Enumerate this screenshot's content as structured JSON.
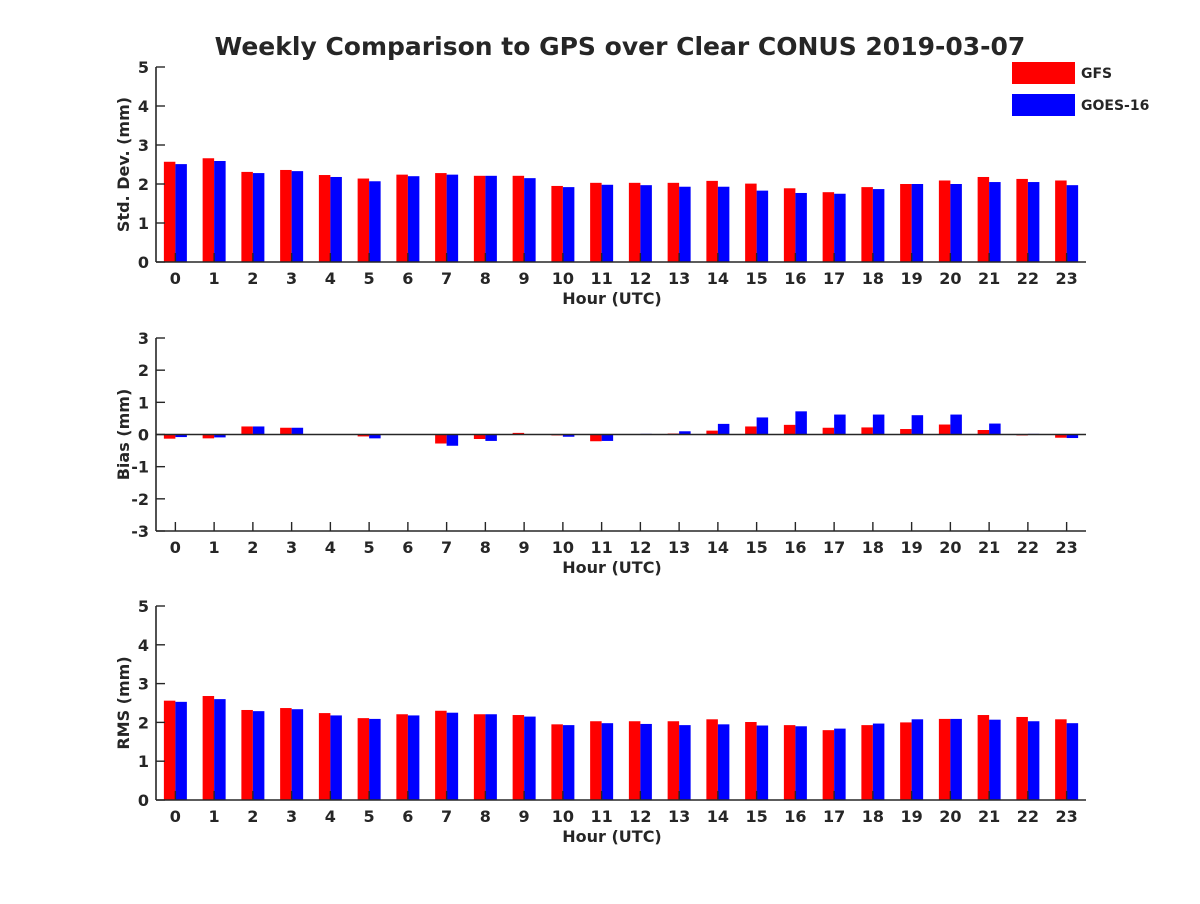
{
  "title": "Weekly Comparison to GPS over Clear CONUS 2019-03-07",
  "legend": [
    {
      "name": "GFS",
      "color": "#ff0000"
    },
    {
      "name": "GOES-16",
      "color": "#0000ff"
    }
  ],
  "chart_data": [
    {
      "type": "bar",
      "xlabel": "Hour (UTC)",
      "ylabel": "Std. Dev. (mm)",
      "ylim": [
        0,
        5
      ],
      "yticks": [
        0,
        1,
        2,
        3,
        4,
        5
      ],
      "categories": [
        "0",
        "1",
        "2",
        "3",
        "4",
        "5",
        "6",
        "7",
        "8",
        "9",
        "10",
        "11",
        "12",
        "13",
        "14",
        "15",
        "16",
        "17",
        "18",
        "19",
        "20",
        "21",
        "22",
        "23"
      ],
      "series": [
        {
          "name": "GFS",
          "color": "#ff0000",
          "values": [
            2.57,
            2.66,
            2.31,
            2.36,
            2.23,
            2.14,
            2.24,
            2.28,
            2.21,
            2.21,
            1.95,
            2.03,
            2.03,
            2.03,
            2.08,
            2.01,
            1.89,
            1.79,
            1.92,
            2.0,
            2.09,
            2.18,
            2.13,
            2.09
          ]
        },
        {
          "name": "GOES-16",
          "color": "#0000ff",
          "values": [
            2.51,
            2.59,
            2.28,
            2.33,
            2.18,
            2.07,
            2.2,
            2.24,
            2.21,
            2.15,
            1.92,
            1.98,
            1.97,
            1.93,
            1.93,
            1.83,
            1.77,
            1.75,
            1.87,
            2.0,
            2.0,
            2.05,
            2.05,
            1.97
          ]
        }
      ]
    },
    {
      "type": "bar",
      "xlabel": "Hour (UTC)",
      "ylabel": "Bias (mm)",
      "ylim": [
        -3,
        3
      ],
      "yticks": [
        -3,
        -2,
        -1,
        0,
        1,
        2,
        3
      ],
      "categories": [
        "0",
        "1",
        "2",
        "3",
        "4",
        "5",
        "6",
        "7",
        "8",
        "9",
        "10",
        "11",
        "12",
        "13",
        "14",
        "15",
        "16",
        "17",
        "18",
        "19",
        "20",
        "21",
        "22",
        "23"
      ],
      "series": [
        {
          "name": "GFS",
          "color": "#ff0000",
          "values": [
            -0.13,
            -0.12,
            0.25,
            0.21,
            0.0,
            -0.06,
            0.0,
            -0.28,
            -0.14,
            0.05,
            -0.03,
            -0.21,
            0.01,
            0.03,
            0.12,
            0.25,
            0.3,
            0.21,
            0.22,
            0.17,
            0.31,
            0.14,
            -0.03,
            -0.1
          ]
        },
        {
          "name": "GOES-16",
          "color": "#0000ff",
          "values": [
            -0.08,
            -0.09,
            0.25,
            0.21,
            0.0,
            -0.12,
            0.0,
            -0.35,
            -0.2,
            0.0,
            -0.07,
            -0.2,
            0.02,
            0.1,
            0.33,
            0.53,
            0.72,
            0.62,
            0.62,
            0.6,
            0.62,
            0.34,
            0.02,
            -0.11
          ]
        }
      ]
    },
    {
      "type": "bar",
      "xlabel": "Hour (UTC)",
      "ylabel": "RMS (mm)",
      "ylim": [
        0,
        5
      ],
      "yticks": [
        0,
        1,
        2,
        3,
        4,
        5
      ],
      "categories": [
        "0",
        "1",
        "2",
        "3",
        "4",
        "5",
        "6",
        "7",
        "8",
        "9",
        "10",
        "11",
        "12",
        "13",
        "14",
        "15",
        "16",
        "17",
        "18",
        "19",
        "20",
        "21",
        "22",
        "23"
      ],
      "series": [
        {
          "name": "GFS",
          "color": "#ff0000",
          "values": [
            2.56,
            2.68,
            2.32,
            2.37,
            2.24,
            2.11,
            2.21,
            2.3,
            2.21,
            2.19,
            1.95,
            2.03,
            2.03,
            2.03,
            2.08,
            2.01,
            1.93,
            1.8,
            1.93,
            2.0,
            2.09,
            2.19,
            2.14,
            2.08
          ]
        },
        {
          "name": "GOES-16",
          "color": "#0000ff",
          "values": [
            2.53,
            2.6,
            2.29,
            2.34,
            2.18,
            2.09,
            2.18,
            2.25,
            2.21,
            2.15,
            1.93,
            1.98,
            1.96,
            1.93,
            1.95,
            1.92,
            1.9,
            1.84,
            1.97,
            2.08,
            2.09,
            2.07,
            2.03,
            1.98
          ]
        }
      ]
    }
  ]
}
